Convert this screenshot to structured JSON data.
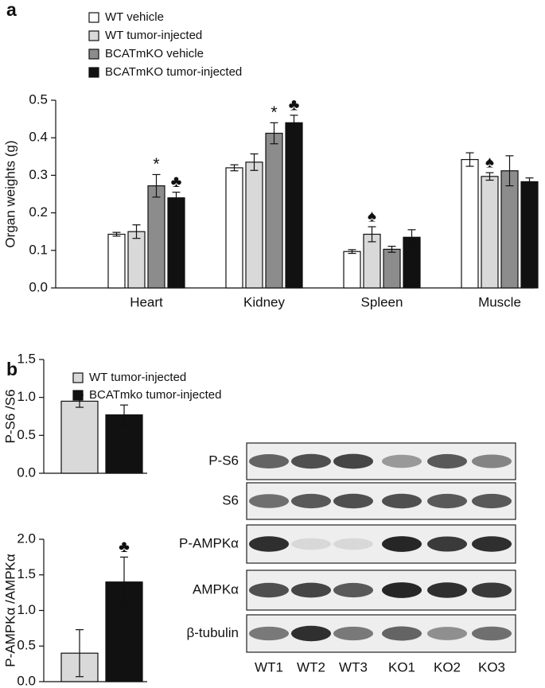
{
  "chart_data": [
    {
      "type": "bar",
      "panel": "a",
      "ylabel": "Organ weights (g)",
      "categories": [
        "Heart",
        "Kidney",
        "Spleen",
        "Muscle"
      ],
      "ylim": [
        0,
        0.5
      ],
      "yticks": [
        {
          "value": 0,
          "label": "0.0"
        },
        {
          "value": 0.1,
          "label": "0.1"
        },
        {
          "value": 0.2,
          "label": "0.2"
        },
        {
          "value": 0.3,
          "label": "0.3"
        },
        {
          "value": 0.4,
          "label": "0.4"
        },
        {
          "value": 0.5,
          "label": "0.5"
        }
      ],
      "legend": true,
      "series": [
        {
          "name": "WT vehicle",
          "color": "#ffffff",
          "values": [
            0.143,
            0.32,
            0.097,
            0.342
          ],
          "errors": [
            0.005,
            0.008,
            0.005,
            0.018
          ],
          "annotations": [
            null,
            null,
            null,
            null
          ]
        },
        {
          "name": "WT tumor-injected",
          "color": "#d9d9d9",
          "values": [
            0.15,
            0.335,
            0.143,
            0.297
          ],
          "errors": [
            0.018,
            0.022,
            0.02,
            0.01
          ],
          "annotations": [
            null,
            null,
            "♠",
            "♠"
          ]
        },
        {
          "name": "BCATmKO vehicle",
          "color": "#8c8c8c",
          "values": [
            0.272,
            0.412,
            0.103,
            0.312
          ],
          "errors": [
            0.03,
            0.028,
            0.008,
            0.04
          ],
          "annotations": [
            "*",
            "*",
            null,
            null
          ]
        },
        {
          "name": "BCATmKO tumor-injected",
          "color": "#111111",
          "values": [
            0.24,
            0.44,
            0.135,
            0.283
          ],
          "errors": [
            0.015,
            0.02,
            0.02,
            0.01
          ],
          "annotations": [
            "♣",
            "♣",
            null,
            null
          ]
        }
      ]
    },
    {
      "type": "bar",
      "panel": "b",
      "ylabel": "P-S6 /S6",
      "ylim": [
        0,
        1.5
      ],
      "yticks": [
        {
          "value": 0,
          "label": "0.0"
        },
        {
          "value": 0.5,
          "label": "0.5"
        },
        {
          "value": 1,
          "label": "1.0"
        },
        {
          "value": 1.5,
          "label": "1.5"
        }
      ],
      "legend": true,
      "series": [
        {
          "name": "WT tumor-injected",
          "color": "#d9d9d9",
          "values": [
            0.95
          ],
          "errors": [
            0.08
          ]
        },
        {
          "name": "BCATmko tumor-injected",
          "color": "#111111",
          "values": [
            0.77
          ],
          "errors": [
            0.13
          ]
        }
      ]
    },
    {
      "type": "bar",
      "ylabel": "P-AMPKα /AMPKα",
      "ylim": [
        0,
        2
      ],
      "yticks": [
        {
          "value": 0,
          "label": "0.0"
        },
        {
          "value": 0.5,
          "label": "0.5"
        },
        {
          "value": 1,
          "label": "1.0"
        },
        {
          "value": 1.5,
          "label": "1.5"
        },
        {
          "value": 2,
          "label": "2.0"
        }
      ],
      "series": [
        {
          "color": "#d9d9d9",
          "values": [
            0.4
          ],
          "errors": [
            0.33
          ],
          "annotations": [
            null
          ]
        },
        {
          "color": "#111111",
          "values": [
            1.4
          ],
          "errors": [
            0.35
          ],
          "annotations": [
            "♣"
          ]
        }
      ]
    }
  ],
  "blot": {
    "rows": [
      "P-S6",
      "S6",
      "P-AMPKα",
      "AMPKα",
      "β-tubulin"
    ],
    "lanes": [
      "WT1",
      "WT2",
      "WT3",
      "KO1",
      "KO2",
      "KO3"
    ]
  }
}
